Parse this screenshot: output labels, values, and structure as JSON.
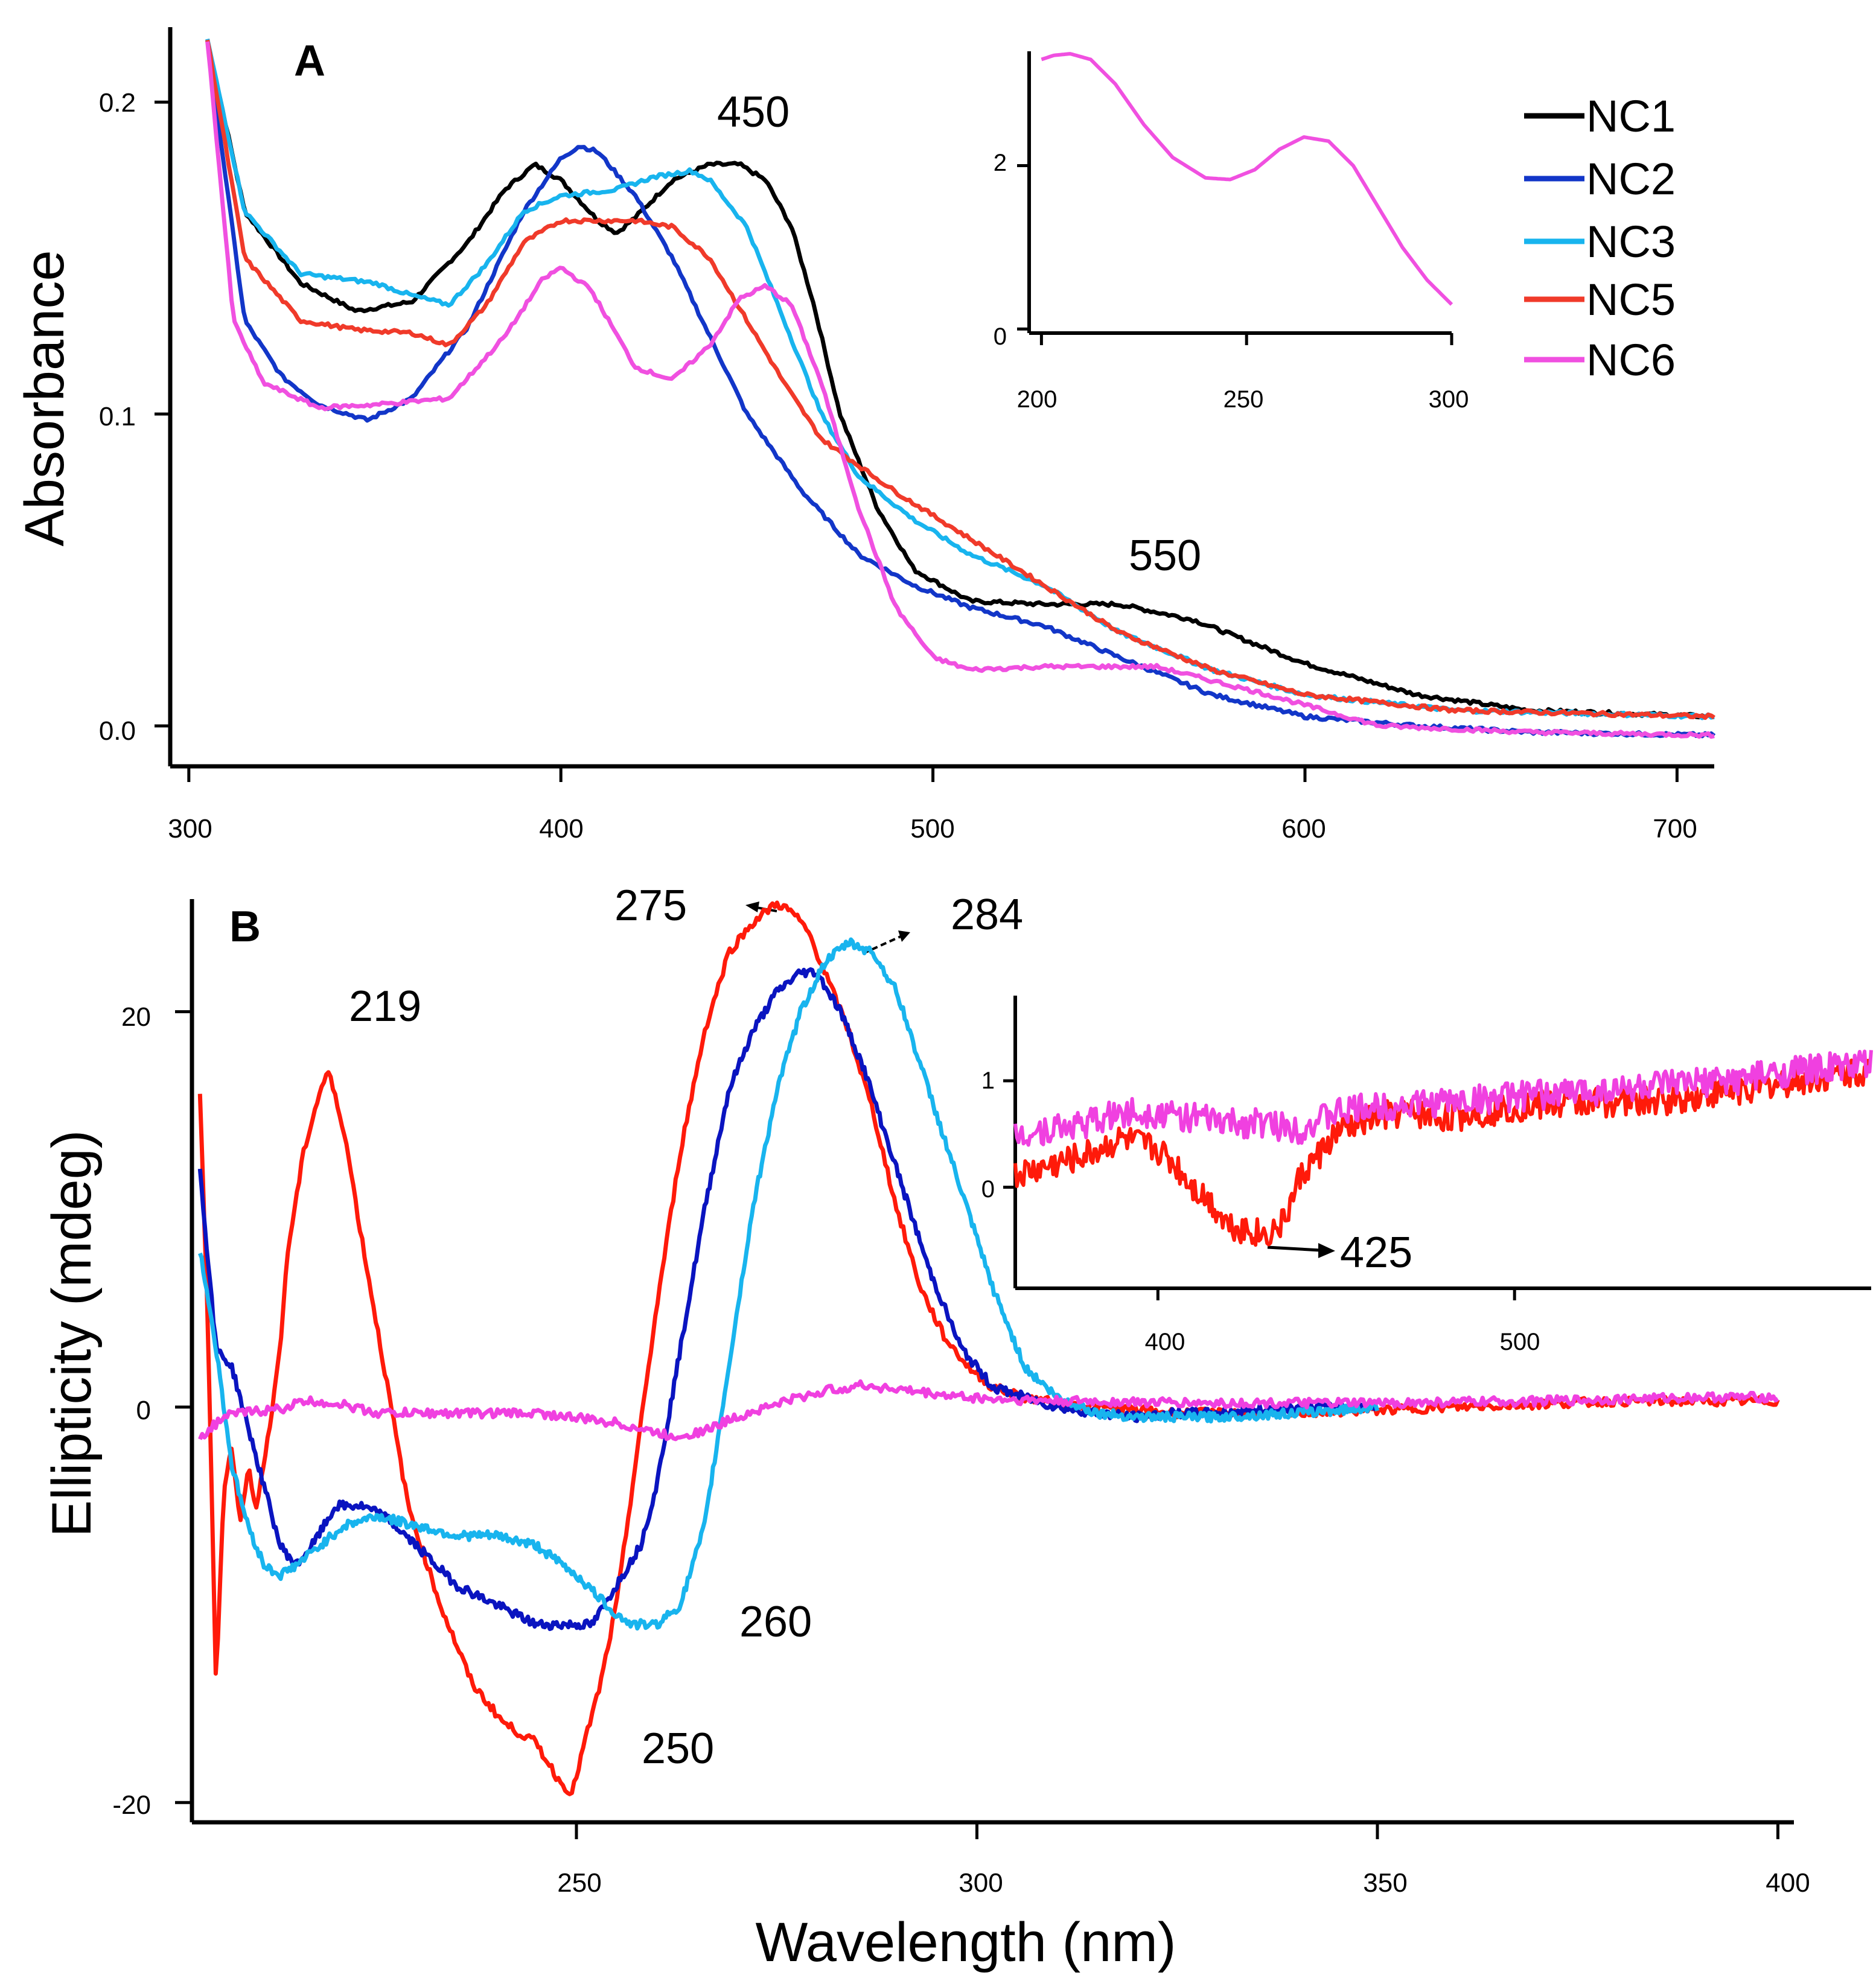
{
  "colors": {
    "NC1": "#000000",
    "NC2": "#1236c8",
    "NC3": "#18b4ee",
    "NC5": "#f03a2a",
    "NC6": "#f050e0",
    "B_red": "#ff1a0a",
    "B_blue": "#0a14c0",
    "B_cyan": "#18b4ee",
    "B_magenta": "#f040e0"
  },
  "chart_data": [
    {
      "type": "line",
      "panel_label": "A",
      "ylabel": "Absorbance",
      "xlabel": "",
      "xlim": [
        295,
        710
      ],
      "ylim": [
        -0.012,
        0.225
      ],
      "xticks": [
        "300",
        "400",
        "500",
        "600",
        "700"
      ],
      "yticks": [
        "0.0",
        "0.1",
        "0.2"
      ],
      "legend": [
        "NC1",
        "NC2",
        "NC3",
        "NC5",
        "NC6"
      ],
      "annotations": [
        "450",
        "550"
      ],
      "series": [
        {
          "name": "NC1",
          "x": [
            305,
            315,
            330,
            345,
            360,
            375,
            385,
            393,
            400,
            410,
            415,
            420,
            430,
            440,
            448,
            455,
            462,
            468,
            475,
            485,
            495,
            510,
            530,
            550,
            570,
            600,
            630,
            660,
            710
          ],
          "y": [
            0.22,
            0.165,
            0.142,
            0.133,
            0.136,
            0.155,
            0.172,
            0.18,
            0.175,
            0.162,
            0.158,
            0.163,
            0.175,
            0.18,
            0.18,
            0.175,
            0.16,
            0.135,
            0.1,
            0.07,
            0.05,
            0.04,
            0.039,
            0.039,
            0.034,
            0.02,
            0.01,
            0.005,
            0.003
          ]
        },
        {
          "name": "NC2",
          "x": [
            305,
            315,
            325,
            335,
            348,
            360,
            375,
            390,
            400,
            405,
            410,
            420,
            430,
            440,
            450,
            465,
            480,
            495,
            510,
            530,
            550,
            575,
            600,
            630,
            660,
            710
          ],
          "y": [
            0.22,
            0.13,
            0.112,
            0.103,
            0.098,
            0.105,
            0.128,
            0.165,
            0.182,
            0.186,
            0.184,
            0.17,
            0.15,
            0.125,
            0.1,
            0.075,
            0.055,
            0.045,
            0.038,
            0.032,
            0.022,
            0.01,
            0.003,
            0.0,
            -0.002,
            -0.003
          ]
        },
        {
          "name": "NC3",
          "x": [
            305,
            315,
            330,
            350,
            360,
            370,
            380,
            390,
            400,
            415,
            425,
            435,
            440,
            450,
            460,
            470,
            480,
            495,
            510,
            530,
            550,
            575,
            600,
            640,
            710
          ],
          "y": [
            0.22,
            0.165,
            0.145,
            0.142,
            0.138,
            0.135,
            0.148,
            0.165,
            0.17,
            0.172,
            0.176,
            0.178,
            0.175,
            0.16,
            0.13,
            0.1,
            0.08,
            0.066,
            0.055,
            0.045,
            0.03,
            0.018,
            0.01,
            0.005,
            0.003
          ]
        },
        {
          "name": "NC5",
          "x": [
            305,
            315,
            330,
            345,
            360,
            370,
            380,
            390,
            400,
            420,
            430,
            440,
            450,
            460,
            470,
            490,
            510,
            530,
            550,
            575,
            600,
            640,
            710
          ],
          "y": [
            0.22,
            0.15,
            0.13,
            0.127,
            0.126,
            0.122,
            0.135,
            0.155,
            0.162,
            0.162,
            0.16,
            0.15,
            0.13,
            0.11,
            0.092,
            0.075,
            0.06,
            0.045,
            0.03,
            0.018,
            0.01,
            0.005,
            0.003
          ]
        },
        {
          "name": "NC6",
          "x": [
            305,
            312,
            320,
            335,
            350,
            370,
            385,
            395,
            400,
            408,
            420,
            430,
            440,
            448,
            455,
            462,
            470,
            480,
            490,
            500,
            510,
            530,
            560,
            590,
            620,
            660,
            710
          ],
          "y": [
            0.22,
            0.13,
            0.11,
            0.102,
            0.103,
            0.105,
            0.125,
            0.143,
            0.147,
            0.14,
            0.115,
            0.111,
            0.122,
            0.137,
            0.141,
            0.135,
            0.11,
            0.07,
            0.038,
            0.022,
            0.018,
            0.019,
            0.019,
            0.01,
            0.0,
            -0.002,
            -0.003
          ]
        }
      ]
    },
    {
      "type": "line",
      "panel_label": "A-inset",
      "xlim": [
        197,
        300
      ],
      "ylim": [
        -0.05,
        3.4
      ],
      "xticks": [
        "200",
        "250",
        "300"
      ],
      "yticks": [
        "0",
        "2"
      ],
      "series": [
        {
          "name": "NC6",
          "x": [
            200,
            203,
            207,
            212,
            218,
            225,
            232,
            240,
            246,
            252,
            258,
            264,
            270,
            276,
            282,
            288,
            294,
            300
          ],
          "y": [
            3.3,
            3.35,
            3.37,
            3.3,
            3.0,
            2.5,
            2.1,
            1.85,
            1.83,
            1.95,
            2.2,
            2.35,
            2.3,
            2.0,
            1.5,
            1.0,
            0.6,
            0.3
          ]
        }
      ]
    },
    {
      "type": "line",
      "panel_label": "B",
      "ylabel": "Ellipticity (mdeg)",
      "xlabel": "Wavelength (nm)",
      "xlim": [
        202,
        402
      ],
      "ylim": [
        -21,
        26
      ],
      "xticks": [
        "250",
        "300",
        "350",
        "400"
      ],
      "yticks": [
        "-20",
        "0",
        "20"
      ],
      "annotations": [
        "219",
        "275",
        "284",
        "260",
        "250"
      ],
      "series": [
        {
          "name": "red",
          "x": [
            203,
            204,
            205,
            206,
            207,
            208,
            209,
            210,
            211,
            212,
            213,
            214,
            216,
            218,
            219,
            221,
            223,
            226,
            229,
            233,
            237,
            241,
            245,
            248,
            249.5,
            251,
            253,
            255,
            257,
            260,
            263,
            266,
            269,
            272,
            275,
            277,
            279,
            281,
            284,
            287,
            290,
            293,
            296,
            299,
            302,
            306,
            310,
            315,
            325,
            340,
            360,
            380,
            400
          ],
          "y": [
            16,
            4,
            -14,
            -4,
            -2,
            -6,
            -3,
            -5,
            -3,
            0,
            3,
            8,
            13,
            16,
            17,
            14,
            9,
            2,
            -5,
            -10,
            -14,
            -16,
            -17,
            -19,
            -19.5,
            -17,
            -14,
            -10,
            -4,
            5,
            13,
            19,
            23,
            24.5,
            25.5,
            25,
            24,
            22,
            19,
            15,
            10,
            6,
            3.5,
            2,
            1,
            0.5,
            0.2,
            0,
            -0.3,
            -0.3,
            0,
            0.3,
            0.3
          ]
        },
        {
          "name": "blue",
          "x": [
            203,
            205,
            207,
            209,
            211,
            213,
            215,
            217,
            220,
            223,
            226,
            230,
            235,
            240,
            245,
            250,
            252,
            255,
            258,
            260,
            263,
            266,
            269,
            272,
            275,
            278,
            280,
            283,
            286,
            290,
            294,
            298,
            302,
            306,
            310,
            315,
            320,
            325,
            330,
            340,
            350
          ],
          "y": [
            12,
            3,
            2,
            -1,
            -4,
            -7,
            -8,
            -7,
            -5,
            -5,
            -5.5,
            -7,
            -9,
            -10,
            -11,
            -11,
            -11,
            -9,
            -7,
            -4,
            3,
            10,
            16,
            19,
            21,
            22,
            22,
            20,
            17,
            12,
            7,
            3,
            1,
            0.5,
            0,
            -0.3,
            -0.5,
            -0.3,
            -0.3,
            0,
            0
          ]
        },
        {
          "name": "cyan",
          "x": [
            203,
            205,
            207,
            209,
            211,
            213,
            215,
            218,
            221,
            225,
            230,
            235,
            240,
            245,
            250,
            255,
            257,
            260,
            263,
            266,
            269,
            272,
            275,
            278,
            281,
            284,
            287,
            290,
            294,
            298,
            302,
            306,
            310,
            315,
            320,
            330,
            340,
            350
          ],
          "y": [
            8,
            3,
            -3,
            -6,
            -8,
            -8.5,
            -8,
            -7,
            -6,
            -5.5,
            -6,
            -6.5,
            -6.5,
            -7,
            -8.5,
            -10.5,
            -11,
            -11,
            -10,
            -6,
            2,
            10,
            16,
            20,
            22.5,
            23.5,
            23,
            21,
            16,
            11,
            6,
            2,
            0.5,
            -0.3,
            -0.5,
            -0.5,
            -0.3,
            0
          ]
        },
        {
          "name": "magenta",
          "x": [
            203,
            206,
            208,
            210,
            213,
            216,
            220,
            225,
            235,
            245,
            255,
            262,
            266,
            270,
            276,
            282,
            286,
            290,
            296,
            302,
            310,
            330,
            350,
            370,
            390,
            400
          ],
          "y": [
            -1.5,
            -0.5,
            -0.3,
            -0.2,
            -0.1,
            0.3,
            0.2,
            -0.3,
            -0.3,
            -0.3,
            -0.8,
            -1.5,
            -1.2,
            -0.5,
            0.3,
            0.9,
            1.1,
            0.9,
            0.6,
            0.4,
            0.3,
            0.2,
            0.2,
            0.3,
            0.5,
            0.5
          ]
        }
      ]
    },
    {
      "type": "line",
      "panel_label": "B-inset",
      "xlim": [
        360,
        600
      ],
      "ylim": [
        -0.95,
        1.8
      ],
      "xticks": [
        "400",
        "500"
      ],
      "yticks": [
        "0",
        "1"
      ],
      "annotations": [
        "425"
      ],
      "series": [
        {
          "name": "red",
          "x": [
            360,
            370,
            380,
            390,
            400,
            405,
            410,
            415,
            420,
            425,
            430,
            435,
            440,
            450,
            460,
            470,
            480,
            490,
            500,
            520,
            540,
            560,
            580,
            600
          ],
          "y": [
            0.1,
            0.2,
            0.3,
            0.45,
            0.35,
            0.2,
            0.0,
            -0.15,
            -0.35,
            -0.4,
            -0.45,
            -0.35,
            0.1,
            0.5,
            0.65,
            0.7,
            0.65,
            0.7,
            0.75,
            0.8,
            0.8,
            0.9,
            1.0,
            1.1
          ]
        },
        {
          "name": "magenta",
          "x": [
            360,
            370,
            380,
            390,
            400,
            410,
            420,
            430,
            440,
            450,
            460,
            480,
            500,
            520,
            540,
            560,
            580,
            600
          ],
          "y": [
            0.5,
            0.55,
            0.6,
            0.7,
            0.7,
            0.65,
            0.6,
            0.6,
            0.55,
            0.7,
            0.75,
            0.8,
            0.85,
            0.9,
            0.95,
            1.0,
            1.1,
            1.15
          ]
        }
      ]
    }
  ]
}
